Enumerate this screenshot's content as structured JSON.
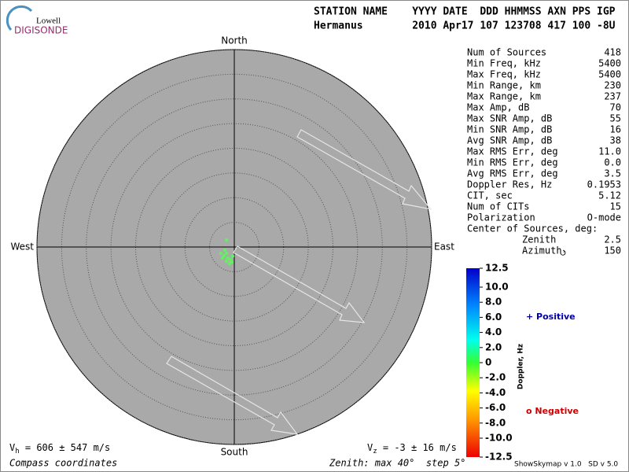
{
  "logo": {
    "top": "Lowell",
    "bottom": "DIGISONDE"
  },
  "header": {
    "line1": "STATION NAME    YYYY DATE  DDD HHMMSS AXN PPS IGP",
    "line2": "Hermanus        2010 Apr17 107 123708 417 100 -8U"
  },
  "stats": {
    "rows": [
      [
        "Num of Sources",
        "418"
      ],
      [
        "Min Freq, kHz",
        "5400"
      ],
      [
        "Max Freq, kHz",
        "5400"
      ],
      [
        "Min Range, km",
        "230"
      ],
      [
        "Max Range, km",
        "237"
      ],
      [
        "Max Amp, dB",
        "70"
      ],
      [
        "Max SNR Amp, dB",
        "55"
      ],
      [
        "Min SNR Amp, dB",
        "16"
      ],
      [
        "Avg SNR Amp, dB",
        "38"
      ],
      [
        "Max RMS Err, deg",
        "11.0"
      ],
      [
        "Min RMS Err, deg",
        "0.0"
      ],
      [
        "Avg RMS Err, deg",
        "3.5"
      ],
      [
        "Doppler Res, Hz",
        "0.1953"
      ],
      [
        "CIT, sec",
        "5.12"
      ],
      [
        "Num of CITs",
        "15"
      ],
      [
        "Polarization",
        "O-mode"
      ]
    ],
    "center_title": "Center of Sources, deg:",
    "center_rows": [
      [
        "Zenith",
        "2.5"
      ],
      [
        "Azimuth",
        "150"
      ]
    ]
  },
  "footer": {
    "vh": [
      "V",
      "h",
      " = 606 ± 547 m/s"
    ],
    "vz": [
      "V",
      "z",
      " = -3 ± 16 m/s"
    ],
    "coords": "Compass coordinates",
    "zenith": "Zenith: max 40°  step 5°",
    "version": "ShowSkymap v 1.0   SD v 5.0"
  },
  "legend": {
    "positive": "+ Positive",
    "negative": "o Negative"
  },
  "chart_data": {
    "type": "skymap",
    "directions": {
      "north": "North",
      "east": "East",
      "south": "South",
      "west": "West"
    },
    "rlim": [
      0,
      40
    ],
    "rticks": [
      5,
      10,
      15,
      20,
      25,
      30,
      35,
      40
    ],
    "point_color": "#66ee66",
    "zenith": [
      2.1,
      3.0,
      2.7,
      2.0,
      2.6,
      2.7,
      3.1,
      3.3,
      3.3,
      1.9,
      3.5,
      2.0
    ],
    "azimuth": [
      312,
      245,
      230,
      231,
      210,
      197,
      189,
      209,
      227,
      190,
      196,
      251
    ],
    "colorbar": {
      "label": "Doppler, Hz",
      "lim": [
        -12.5,
        12.5
      ],
      "ticks": [
        12.5,
        {
          "value": 10,
          "label": "10.0"
        },
        {
          "value": 8,
          "label": "8.0"
        },
        {
          "value": 6,
          "label": "6.0"
        },
        {
          "value": 4,
          "label": "4.0"
        },
        {
          "value": 2,
          "label": "2.0"
        },
        0,
        {
          "value": -2,
          "label": "-2.0"
        },
        {
          "value": -4,
          "label": "-4.0"
        },
        {
          "value": -6,
          "label": "-6.0"
        },
        {
          "value": -8,
          "label": "-8.0"
        },
        {
          "value": -10,
          "label": "-10.0"
        },
        -12.5
      ]
    }
  }
}
